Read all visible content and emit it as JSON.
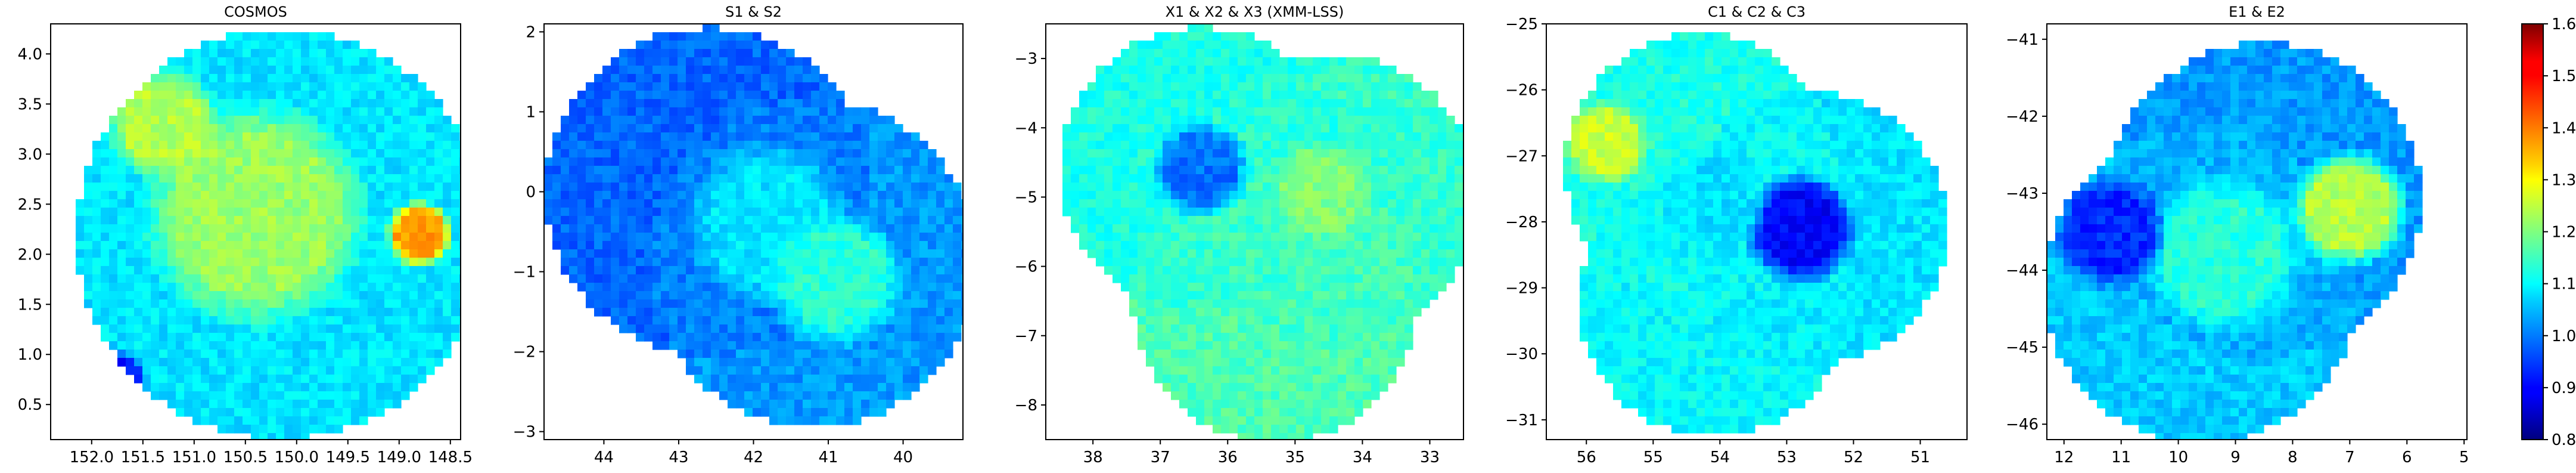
{
  "figure": {
    "colormap": "jet",
    "colorbar": {
      "range": [
        0.8,
        1.6
      ],
      "ticks": [
        0.8,
        0.9,
        1.0,
        1.1,
        1.2,
        1.3,
        1.4,
        1.5,
        1.6
      ],
      "tick_labels": [
        "0.8",
        "0.9",
        "1.0",
        "1.1",
        "1.2",
        "1.3",
        "1.4",
        "1.5",
        "1.6"
      ]
    }
  },
  "chart_data": [
    {
      "type": "heatmap",
      "title": "COSMOS",
      "xlabel": "",
      "ylabel": "",
      "xlim": [
        152.4,
        148.4
      ],
      "ylim": [
        0.15,
        4.3
      ],
      "x_ticks": [
        152.0,
        151.5,
        151.0,
        150.5,
        150.0,
        149.5,
        149.0,
        148.5
      ],
      "x_tick_labels": [
        "152.0",
        "151.5",
        "151.0",
        "150.5",
        "150.0",
        "149.5",
        "149.0",
        "148.5"
      ],
      "y_ticks": [
        0.5,
        1.0,
        1.5,
        2.0,
        2.5,
        3.0,
        3.5,
        4.0
      ],
      "y_tick_labels": [
        "0.5",
        "1.0",
        "1.5",
        "2.0",
        "2.5",
        "3.0",
        "3.5",
        "4.0"
      ],
      "footprints": [
        {
          "ra": 150.15,
          "dec": 2.2,
          "radius_deg": 2.05,
          "base_value": 1.08
        }
      ],
      "regions": [
        {
          "ra": 150.4,
          "dec": 2.4,
          "radius_deg": 1.2,
          "value": 1.22
        },
        {
          "ra": 151.3,
          "dec": 3.3,
          "radius_deg": 0.6,
          "value": 1.24
        },
        {
          "ra": 148.8,
          "dec": 2.2,
          "radius_deg": 0.35,
          "value": 1.38
        },
        {
          "ra": 151.8,
          "dec": 0.7,
          "radius_deg": 0.4,
          "value": 0.92
        }
      ],
      "grid": false
    },
    {
      "type": "heatmap",
      "title": "S1 & S2",
      "xlabel": "",
      "ylabel": "",
      "xlim": [
        44.8,
        39.2
      ],
      "ylim": [
        -3.1,
        2.1
      ],
      "x_ticks": [
        44,
        43,
        42,
        41,
        40
      ],
      "x_tick_labels": [
        "44",
        "43",
        "42",
        "41",
        "40"
      ],
      "y_ticks": [
        -3,
        -2,
        -1,
        0,
        1,
        2
      ],
      "y_tick_labels": [
        "−3",
        "−2",
        "−1",
        "0",
        "1",
        "2"
      ],
      "footprints": [
        {
          "ra": 42.6,
          "dec": 0.0,
          "radius_deg": 2.05,
          "base_value": 0.98
        },
        {
          "ra": 41.2,
          "dec": -0.9,
          "radius_deg": 2.05,
          "base_value": 1.02
        }
      ],
      "regions": [
        {
          "ra": 41.8,
          "dec": -0.4,
          "radius_deg": 1.1,
          "value": 1.08
        },
        {
          "ra": 40.9,
          "dec": -1.1,
          "radius_deg": 0.9,
          "value": 1.13
        }
      ],
      "grid": false
    },
    {
      "type": "heatmap",
      "title": "X1 & X2 & X3 (XMM-LSS)",
      "xlabel": "",
      "ylabel": "",
      "xlim": [
        38.7,
        32.5
      ],
      "ylim": [
        -8.5,
        -2.5
      ],
      "x_ticks": [
        38,
        37,
        36,
        35,
        34,
        33
      ],
      "x_tick_labels": [
        "38",
        "37",
        "36",
        "35",
        "34",
        "33"
      ],
      "y_ticks": [
        -8,
        -7,
        -6,
        -5,
        -4,
        -3
      ],
      "y_tick_labels": [
        "−8",
        "−7",
        "−6",
        "−5",
        "−4",
        "−3"
      ],
      "footprints": [
        {
          "ra": 36.4,
          "dec": -4.6,
          "radius_deg": 2.05,
          "base_value": 1.12
        },
        {
          "ra": 34.4,
          "dec": -5.0,
          "radius_deg": 2.05,
          "base_value": 1.14
        },
        {
          "ra": 35.3,
          "dec": -6.5,
          "radius_deg": 2.05,
          "base_value": 1.16
        }
      ],
      "regions": [
        {
          "ra": 36.4,
          "dec": -4.6,
          "radius_deg": 0.75,
          "value": 0.99
        },
        {
          "ra": 34.6,
          "dec": -4.9,
          "radius_deg": 0.8,
          "value": 1.2
        }
      ],
      "grid": false
    },
    {
      "type": "heatmap",
      "title": "C1 & C2 & C3",
      "xlabel": "",
      "ylabel": "",
      "xlim": [
        56.6,
        50.3
      ],
      "ylim": [
        -31.3,
        -25.0
      ],
      "x_ticks": [
        56,
        55,
        54,
        53,
        52,
        51
      ],
      "x_tick_labels": [
        "56",
        "55",
        "54",
        "53",
        "52",
        "51"
      ],
      "y_ticks": [
        -31,
        -30,
        -29,
        -28,
        -27,
        -26,
        -25
      ],
      "y_tick_labels": [
        "−31",
        "−30",
        "−29",
        "−28",
        "−27",
        "−26",
        "−25"
      ],
      "footprints": [
        {
          "ra": 54.3,
          "dec": -27.2,
          "radius_deg": 2.05,
          "base_value": 1.12
        },
        {
          "ra": 52.6,
          "dec": -28.1,
          "radius_deg": 2.05,
          "base_value": 1.08
        },
        {
          "ra": 54.1,
          "dec": -29.2,
          "radius_deg": 2.05,
          "base_value": 1.1
        }
      ],
      "regions": [
        {
          "ra": 52.8,
          "dec": -28.1,
          "radius_deg": 0.9,
          "value": 0.9
        },
        {
          "ra": 54.1,
          "dec": -27.7,
          "radius_deg": 0.9,
          "value": 1.08
        },
        {
          "ra": 55.7,
          "dec": -26.8,
          "radius_deg": 0.7,
          "value": 1.26
        }
      ],
      "grid": false
    },
    {
      "type": "heatmap",
      "title": "E1 & E2",
      "xlabel": "",
      "ylabel": "",
      "xlim": [
        12.3,
        4.95
      ],
      "ylim": [
        -46.2,
        -40.8
      ],
      "x_ticks": [
        12,
        11,
        10,
        9,
        8,
        7,
        6,
        5
      ],
      "x_tick_labels": [
        "12",
        "11",
        "10",
        "9",
        "8",
        "7",
        "6",
        "5"
      ],
      "y_ticks": [
        -46,
        -45,
        -44,
        -43,
        -42,
        -41
      ],
      "y_tick_labels": [
        "−46",
        "−45",
        "−44",
        "−43",
        "−42",
        "−41"
      ],
      "footprints": [
        {
          "ra": 8.5,
          "dec": -43.1,
          "radius_deg": 2.05,
          "base_value": 1.02
        },
        {
          "ra": 9.6,
          "dec": -44.2,
          "radius_deg": 2.05,
          "base_value": 1.06
        }
      ],
      "regions": [
        {
          "ra": 9.2,
          "dec": -43.8,
          "radius_deg": 1.1,
          "value": 1.13
        },
        {
          "ra": 7.0,
          "dec": -43.2,
          "radius_deg": 0.8,
          "value": 1.24
        },
        {
          "ra": 11.2,
          "dec": -43.5,
          "radius_deg": 0.8,
          "value": 0.93
        }
      ],
      "grid": false
    }
  ]
}
